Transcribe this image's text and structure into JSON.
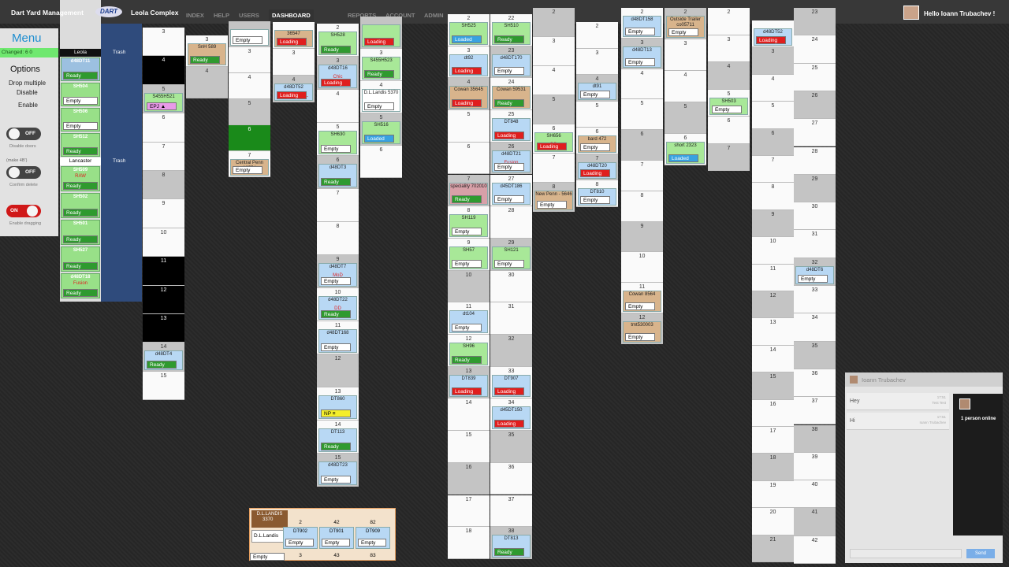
{
  "header": {
    "title": "Dart Yard Management",
    "logo": "DART",
    "location": "Leola Complex",
    "greeting": "Hello Ioann Trubachev !",
    "nav": [
      "INDEX",
      "HELP",
      "USERS",
      "DASHBOARD",
      "REPORTS",
      "ACCOUNT",
      "ADMIN"
    ],
    "active": "DASHBOARD"
  },
  "menu": {
    "title": "Menu",
    "changed": "Changed: 6 0",
    "options": "Options",
    "drop": "Drop multiple",
    "disable": "Disable",
    "enable": "Enable",
    "toggles": [
      {
        "state": "OFF",
        "label": "Disable doors"
      },
      {
        "state": "OFF",
        "label": "Confirm delete",
        "pre": "(make 4B')"
      },
      {
        "state": "ON",
        "label": "Enable dragging"
      }
    ]
  },
  "lots": [
    {
      "name": "Leola",
      "trash": "Trash",
      "items": [
        {
          "trailer": "d48DT11",
          "status": "Ready"
        },
        {
          "trailer": "SH504",
          "status": "Empty"
        },
        {
          "trailer": "SH506",
          "status": "Empty"
        },
        {
          "trailer": "SH512",
          "status": "Ready"
        }
      ]
    },
    {
      "name": "Lancaster",
      "trash": "Trash",
      "items": [
        {
          "trailer": "SH509",
          "note": "RAW",
          "status": "Ready"
        },
        {
          "trailer": "SH502",
          "status": "Ready"
        },
        {
          "trailer": "SH501",
          "status": "Ready"
        },
        {
          "trailer": "SH527",
          "status": "Ready"
        },
        {
          "trailer": "d48DT18",
          "note": "Fusion",
          "status": "Ready"
        }
      ]
    }
  ],
  "columns": [
    [
      {
        "num": 3
      },
      {
        "num": 4,
        "fill": "#000000"
      },
      {
        "num": 5,
        "trailer": "S455H521",
        "status": "EPJ ▲",
        "color": "#a8e898"
      },
      {
        "num": 6
      },
      {
        "num": 7
      },
      {
        "num": 8
      },
      {
        "num": 9
      },
      {
        "num": 10
      },
      {
        "num": 11,
        "fill": "#000000"
      },
      {
        "num": 12,
        "fill": "#000000"
      },
      {
        "num": 13,
        "fill": "#000000"
      },
      {
        "num": 14,
        "trailer": "d48DT4",
        "status": "Ready",
        "color": "#b8d8f4"
      },
      {
        "num": 15
      }
    ],
    [
      {
        "num": 3,
        "trailer": "SnH 589",
        "status": "Ready",
        "color": "#d8b48c"
      },
      {
        "num": 4
      }
    ],
    [
      {
        "status": "Empty",
        "color": "#ffffff"
      },
      {
        "num": 3
      },
      {
        "num": 4
      },
      {
        "num": 5
      },
      {
        "num": 6,
        "fill": "#1a8a1a"
      },
      {
        "num": 7,
        "trailer": "Central Penn 12554",
        "status": "Empty",
        "color": "#d8b48c"
      }
    ],
    [
      {
        "trailer": "36547",
        "status": "Loading",
        "color": "#d8b48c"
      },
      {
        "num": 3
      },
      {
        "num": 4,
        "trailer": "d48DT52",
        "note": "CENTERVILL",
        "status": "Loading",
        "color": "#b8d8f4"
      }
    ],
    [
      {
        "num": 2,
        "trailer": "SH528",
        "status": "Ready",
        "color": "#a8e898"
      },
      {
        "num": 3,
        "trailer": "d48DT16",
        "note": "Chic",
        "status": "Loading",
        "color": "#b8d8f4"
      },
      {
        "num": 4
      },
      {
        "num": 5,
        "trailer": "SH630",
        "status": "Empty",
        "color": "#a8e898"
      },
      {
        "num": 6,
        "trailer": "d48DT3",
        "status": "Ready",
        "color": "#b8d8f4"
      },
      {
        "num": 7
      },
      {
        "num": 8
      },
      {
        "num": 9,
        "trailer": "d48DT7",
        "note": "MoD",
        "status": "Empty",
        "color": "#b8d8f4"
      },
      {
        "num": 10,
        "trailer": "d48DT22",
        "note": "DD",
        "status": "Ready",
        "color": "#b8d8f4"
      },
      {
        "num": 11,
        "trailer": "d48DT168",
        "status": "Empty",
        "color": "#b8d8f4"
      },
      {
        "num": 12
      },
      {
        "num": 13,
        "trailer": "DT860",
        "status": "NP ≡",
        "color": "#b8d8f4"
      },
      {
        "num": 14,
        "trailer": "DT113",
        "status": "Ready",
        "color": "#b8d8f4"
      },
      {
        "num": 15,
        "trailer": "d48DT23",
        "status": "Empty",
        "color": "#b8d8f4"
      }
    ],
    [
      {
        "status": "Loading",
        "color": "#a8e898"
      },
      {
        "num": 3,
        "trailer": "S455H523",
        "status": "Ready",
        "color": "#a8e898"
      },
      {
        "num": 4,
        "trailer": "D.L.Landis 5370",
        "status": "Empty",
        "color": "#ffffff"
      },
      {
        "num": 5,
        "trailer": "SH516",
        "status": "Loaded",
        "color": "#a8e898"
      },
      {
        "num": 6
      }
    ],
    [
      {
        "num": 2,
        "trailer": "SH525",
        "status": "Loaded",
        "color": "#a8e898"
      },
      {
        "num": 3,
        "trailer": "dt92",
        "status": "Loading",
        "color": "#b8d8f4"
      },
      {
        "num": 4,
        "trailer": "Cowan 35645",
        "status": "Loading",
        "color": "#d8b48c"
      },
      {
        "num": 5
      },
      {
        "num": 6
      },
      {
        "num": 7,
        "trailer": "speciality 702010",
        "status": "Ready",
        "color": "#d8a0a8"
      },
      {
        "num": 8,
        "trailer": "SH119",
        "status": "Empty",
        "color": "#a8e898"
      },
      {
        "num": 9,
        "trailer": "SH57",
        "status": "Empty",
        "color": "#a8e898"
      },
      {
        "num": 10
      },
      {
        "num": 11,
        "trailer": "dt104",
        "status": "Empty",
        "color": "#b8d8f4"
      },
      {
        "num": 12,
        "trailer": "SH96",
        "status": "Ready",
        "color": "#a8e898"
      },
      {
        "num": 13,
        "trailer": "DT839",
        "status": "Loading",
        "color": "#b8d8f4"
      },
      {
        "num": 14
      },
      {
        "num": 15
      },
      {
        "num": 16
      },
      {
        "num": 17
      },
      {
        "num": 18
      }
    ],
    [
      {
        "num": 22,
        "trailer": "SH510",
        "status": "Ready",
        "color": "#a8e898"
      },
      {
        "num": 23,
        "trailer": "d48DT170",
        "status": "Empty",
        "color": "#b8d8f4"
      },
      {
        "num": 24,
        "trailer": "Cowan 59531",
        "status": "Ready",
        "color": "#d8b48c"
      },
      {
        "num": 25,
        "trailer": "DT848",
        "status": "Loading",
        "color": "#b8d8f4"
      },
      {
        "num": 26,
        "trailer": "d48DT21",
        "note": "Fusion",
        "status": "Empty",
        "color": "#b8d8f4"
      },
      {
        "num": 27,
        "trailer": "d45DT186",
        "status": "Empty",
        "color": "#b8d8f4"
      },
      {
        "num": 28
      },
      {
        "num": 29,
        "trailer": "SH121",
        "status": "Empty",
        "color": "#a8e898"
      },
      {
        "num": 30
      },
      {
        "num": 31
      },
      {
        "num": 32
      },
      {
        "num": 33,
        "trailer": "DT907",
        "status": "Loading",
        "color": "#b8d8f4"
      },
      {
        "num": 34,
        "trailer": "d45DT150",
        "status": "Loading",
        "color": "#b8d8f4"
      },
      {
        "num": 35
      },
      {
        "num": 36
      },
      {
        "num": 37
      },
      {
        "num": 38,
        "trailer": "DT813",
        "status": "Ready",
        "color": "#b8d8f4"
      }
    ],
    [
      {
        "num": 2
      },
      {
        "num": 3
      },
      {
        "num": 4
      },
      {
        "num": 5
      },
      {
        "num": 6,
        "trailer": "SH656",
        "note": "DD",
        "status": "Loading",
        "color": "#a8e898"
      },
      {
        "num": 7
      },
      {
        "num": 8,
        "trailer": "New Penn - 5646",
        "status": "Empty",
        "color": "#d8b48c"
      }
    ],
    [
      {
        "num": 2
      },
      {
        "num": 3
      },
      {
        "num": 4,
        "trailer": "dt91",
        "status": "Empty",
        "color": "#b8d8f4"
      },
      {
        "num": 5
      },
      {
        "num": 6,
        "trailer": "bard 472",
        "status": "Empty",
        "color": "#d8b48c"
      },
      {
        "num": 7,
        "trailer": "d48DT20",
        "status": "Loading",
        "color": "#b8d8f4"
      },
      {
        "num": 8,
        "trailer": "DT810",
        "status": "Empty",
        "color": "#b8d8f4"
      }
    ],
    [
      {
        "num": 2,
        "trailer": "d48DT158",
        "status": "Empty",
        "color": "#b8d8f4"
      },
      {
        "num": 3,
        "trailer": "d48DT13",
        "status": "Empty",
        "color": "#b8d8f4"
      },
      {
        "num": 4
      },
      {
        "num": 5
      },
      {
        "num": 6
      },
      {
        "num": 7
      },
      {
        "num": 8
      },
      {
        "num": 9
      },
      {
        "num": 10
      },
      {
        "num": 11,
        "trailer": "Cowan 8564",
        "status": "Empty",
        "color": "#d8b48c"
      },
      {
        "num": 12,
        "trailer": "tmt530003",
        "status": "Empty",
        "color": "#d8b48c"
      }
    ],
    [
      {
        "num": 2,
        "trailer": "Outside Trailer co05711",
        "status": "Empty",
        "color": "#d8b48c"
      },
      {
        "num": 3
      },
      {
        "num": 4
      },
      {
        "num": 5
      },
      {
        "num": 6,
        "trailer": "short 2323",
        "status": "Loaded",
        "color": "#a8e898"
      }
    ],
    [
      {
        "num": 2
      },
      {
        "num": 3
      },
      {
        "num": 4
      },
      {
        "num": 5,
        "trailer": "SH503",
        "status": "Empty",
        "color": "#a8e898"
      },
      {
        "num": 6
      },
      {
        "num": 7
      }
    ],
    [
      {
        "trailer": "d48DT52",
        "note": "CENVILL",
        "status": "Loading",
        "color": "#b8d8f4"
      },
      {
        "num": 3
      },
      {
        "num": 4
      },
      {
        "num": 5
      },
      {
        "num": 6
      },
      {
        "num": 7
      },
      {
        "num": 8
      },
      {
        "num": 9
      },
      {
        "num": 10
      },
      {
        "num": 11
      },
      {
        "num": 12
      },
      {
        "num": 13
      },
      {
        "num": 14
      },
      {
        "num": 15
      },
      {
        "num": 16
      },
      {
        "num": 17
      },
      {
        "num": 18
      },
      {
        "num": 19
      },
      {
        "num": 20
      },
      {
        "num": 21
      }
    ],
    [
      {
        "num": 23
      },
      {
        "num": 24
      },
      {
        "num": 25
      },
      {
        "num": 26
      },
      {
        "num": 27
      },
      {
        "num": 28
      },
      {
        "num": 29
      },
      {
        "num": 30
      },
      {
        "num": 31
      },
      {
        "num": 32,
        "trailer": "d48DT6",
        "status": "Empty",
        "color": "#b8d8f4"
      },
      {
        "num": 33
      },
      {
        "num": 34
      },
      {
        "num": 35
      },
      {
        "num": 36
      },
      {
        "num": 37
      },
      {
        "num": 38
      },
      {
        "num": 39
      },
      {
        "num": 40
      },
      {
        "num": 41
      },
      {
        "num": 42
      }
    ]
  ],
  "bottom": {
    "title": "D.L.LANDIS",
    "code": "3370",
    "input": "D.L.Landis",
    "status": "Empty",
    "slots": [
      {
        "num": 2,
        "trailer": "DT902",
        "status": "Empty",
        "foot": 3
      },
      {
        "num": 42,
        "trailer": "DT901",
        "status": "Empty",
        "foot": 43
      },
      {
        "num": 82,
        "trailer": "DT909",
        "status": "Empty",
        "foot": 83
      }
    ]
  },
  "chat": {
    "title": "Ioann Trubachev",
    "online": "1 person online",
    "send": "Send",
    "messages": [
      {
        "text": "Hey",
        "time": "17:51",
        "who": "Test Test"
      },
      {
        "text": "Hi",
        "time": "17:51",
        "who": "Ioann Trubachev"
      }
    ]
  }
}
